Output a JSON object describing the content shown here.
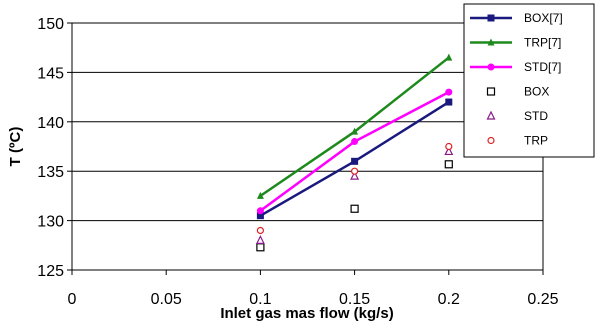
{
  "chart_data": {
    "type": "line",
    "title": "",
    "xlabel": "Inlet gas mas flow (kg/s)",
    "ylabel": "T (ºC)",
    "xlim": [
      0,
      0.25
    ],
    "ylim": [
      125,
      150
    ],
    "xticks": [
      0,
      0.05,
      0.1,
      0.15,
      0.2,
      0.25
    ],
    "yticks": [
      125,
      130,
      135,
      140,
      145,
      150
    ],
    "xtick_labels": [
      "0",
      "0.05",
      "0.1",
      "0.15",
      "0.2",
      "0.25"
    ],
    "ytick_labels": [
      "125",
      "130",
      "135",
      "140",
      "145",
      "150"
    ],
    "grid": "horizontal",
    "legend_position": "top-right",
    "series": [
      {
        "name": "BOX[7]",
        "style": "line",
        "marker": "square-filled",
        "color": "#1a1a7e",
        "x": [
          0.1,
          0.15,
          0.2
        ],
        "y": [
          130.5,
          136.0,
          142.0
        ]
      },
      {
        "name": "TRP[7]",
        "style": "line",
        "marker": "triangle-filled",
        "color": "#1e8a1e",
        "x": [
          0.1,
          0.15,
          0.2
        ],
        "y": [
          132.5,
          139.0,
          146.5
        ]
      },
      {
        "name": "STD[7]",
        "style": "line",
        "marker": "circle-filled",
        "color": "#ff00ff",
        "x": [
          0.1,
          0.15,
          0.2
        ],
        "y": [
          131.0,
          138.0,
          143.0
        ]
      },
      {
        "name": "BOX",
        "style": "marker",
        "marker": "square-open",
        "color": "#000000",
        "x": [
          0.1,
          0.15,
          0.2
        ],
        "y": [
          127.3,
          131.2,
          135.7
        ]
      },
      {
        "name": "STD",
        "style": "marker",
        "marker": "triangle-open",
        "color": "#8b1a8b",
        "x": [
          0.1,
          0.15,
          0.2
        ],
        "y": [
          128.0,
          134.5,
          137.0
        ]
      },
      {
        "name": "TRP",
        "style": "marker",
        "marker": "circle-open",
        "color": "#e02020",
        "x": [
          0.1,
          0.15,
          0.2
        ],
        "y": [
          129.0,
          135.0,
          137.5
        ]
      }
    ]
  }
}
